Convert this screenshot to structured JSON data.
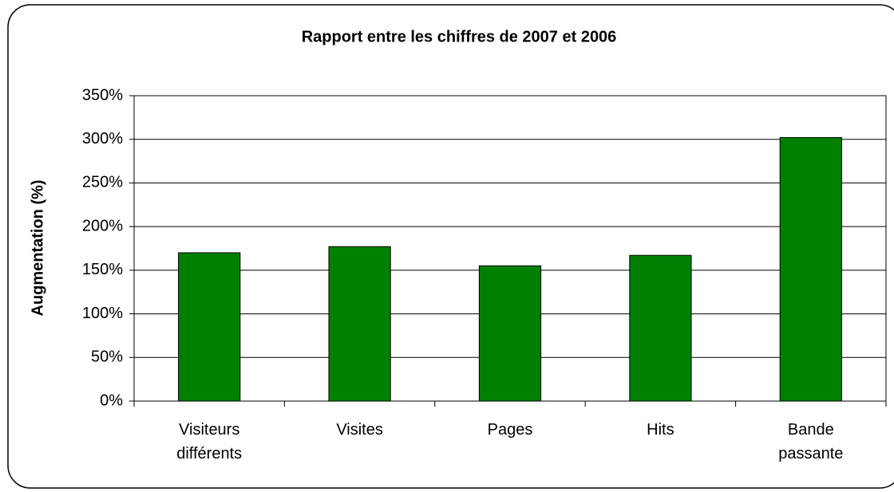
{
  "chart_data": {
    "type": "bar",
    "title": "Rapport entre les chiffres de 2007 et 2006",
    "y_axis_label": "Augmentation (%)",
    "categories": [
      "Visiteurs différents",
      "Visites",
      "Pages",
      "Hits",
      "Bande passante"
    ],
    "values": [
      170,
      177,
      155,
      167,
      302
    ],
    "color": "#008000",
    "ylim": [
      0,
      350
    ],
    "yticks": [
      {
        "value": 0,
        "label": "0%"
      },
      {
        "value": 50,
        "label": "50%"
      },
      {
        "value": 100,
        "label": "100%"
      },
      {
        "value": 150,
        "label": "150%"
      },
      {
        "value": 200,
        "label": "200%"
      },
      {
        "value": 250,
        "label": "250%"
      },
      {
        "value": 300,
        "label": "300%"
      },
      {
        "value": 350,
        "label": "350%"
      }
    ],
    "grid": true
  }
}
